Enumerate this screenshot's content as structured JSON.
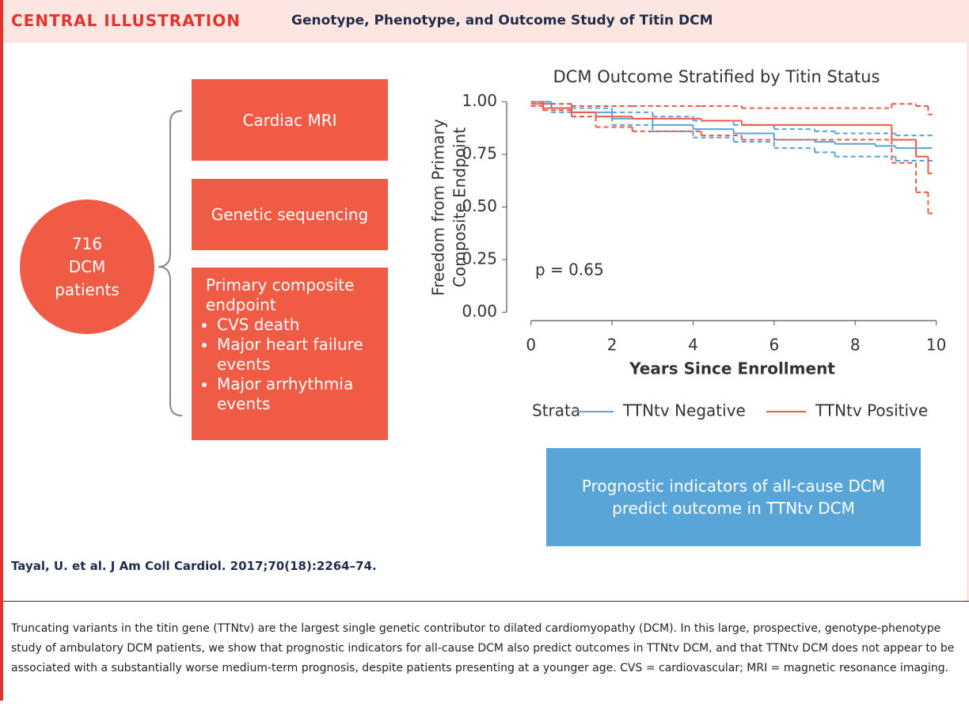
{
  "header": {
    "label": "CENTRAL ILLUSTRATION",
    "title": "Genotype, Phenotype, and Outcome Study of Titin DCM"
  },
  "cohort": {
    "lines": [
      "716",
      "DCM",
      "patients"
    ]
  },
  "boxes": {
    "mri": "Cardiac MRI",
    "sequencing": "Genetic sequencing",
    "endpoint": {
      "title": "Primary composite endpoint",
      "items": [
        "CVS death",
        "Major heart failure events",
        "Major arrhythmia events"
      ]
    }
  },
  "chart_data": {
    "type": "step",
    "title": "DCM Outcome Stratified by Titin Status",
    "xlabel": "Years Since Enrollment",
    "ylabel": [
      "Freedom from Primary",
      "Composite Endpoint"
    ],
    "annotation": "p = 0.65",
    "legend_title": "Strata",
    "xlim": [
      -0.6,
      10.3
    ],
    "ylim": [
      -0.04,
      1.04
    ],
    "xticks": [
      0,
      2,
      4,
      6,
      8,
      10
    ],
    "yticks": [
      {
        "value": 1.0,
        "label": "1.00"
      },
      0.75,
      {
        "value": 0.5,
        "label": "0.50"
      },
      0.25,
      {
        "value": 0,
        "label": "0.00"
      }
    ],
    "series": [
      {
        "name": "TTNtv Negative",
        "color": "#5aa3d8",
        "x": [
          0,
          0.5,
          1,
          2,
          3,
          4,
          5,
          6,
          7,
          7.5,
          8.5,
          9,
          9.9
        ],
        "values": [
          1.0,
          0.97,
          0.95,
          0.92,
          0.89,
          0.87,
          0.85,
          0.82,
          0.81,
          0.8,
          0.79,
          0.78,
          0.78
        ],
        "lower": [
          0.99,
          0.95,
          0.93,
          0.89,
          0.86,
          0.83,
          0.81,
          0.78,
          0.76,
          0.74,
          0.74,
          0.72,
          0.72
        ],
        "upper": [
          1.0,
          0.99,
          0.97,
          0.95,
          0.93,
          0.91,
          0.89,
          0.87,
          0.86,
          0.85,
          0.85,
          0.84,
          0.84
        ]
      },
      {
        "name": "TTNtv Positive",
        "color": "#ee5a45",
        "x": [
          0,
          0.3,
          1,
          1.6,
          2.5,
          4.2,
          5.2,
          8.9,
          9.5,
          9.8,
          9.9
        ],
        "values": [
          0.99,
          0.97,
          0.95,
          0.93,
          0.92,
          0.91,
          0.89,
          0.82,
          0.74,
          0.66,
          0.66
        ],
        "lower": [
          0.98,
          0.96,
          0.93,
          0.88,
          0.86,
          0.84,
          0.82,
          0.71,
          0.57,
          0.47,
          0.47
        ],
        "upper": [
          1.0,
          0.99,
          0.98,
          0.98,
          0.98,
          0.98,
          0.97,
          0.99,
          0.98,
          0.94,
          0.94
        ]
      }
    ]
  },
  "conclusion": "Prognostic indicators of all-cause DCM predict outcome in TTNtv DCM",
  "citation": "Tayal, U. et al. J Am Coll Cardiol. 2017;70(18):2264–74.",
  "caption": "Truncating variants in the titin gene (TTNtv) are the largest single genetic contributor to dilated cardiomyopathy (DCM). In this large, prospective, genotype-phenotype study of ambulatory DCM patients, we show that prognostic indicators for all-cause DCM also predict outcomes in TTNtv DCM, and that TTNtv DCM does not appear to be associated with a substantially worse medium-term prognosis, despite patients presenting at a younger age. CVS = cardiovascular; MRI = magnetic resonance imaging."
}
